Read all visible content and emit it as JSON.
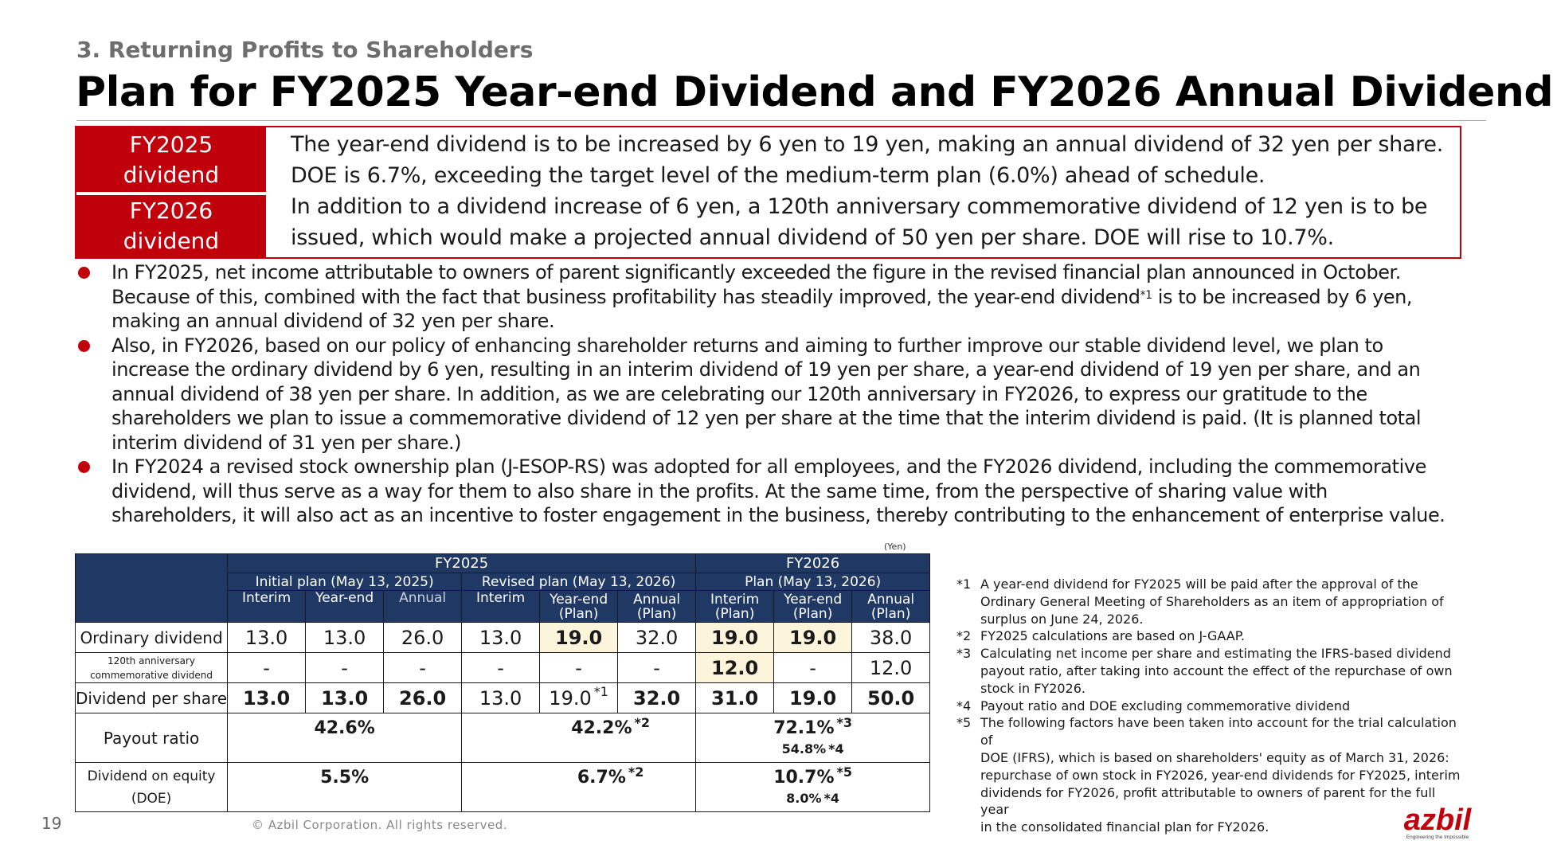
{
  "header": {
    "section": "3. Returning Profits to Shareholders",
    "title": "Plan for FY2025 Year-end Dividend and FY2026 Annual Dividend"
  },
  "summary": {
    "fy2025_label": [
      "FY2025",
      "dividend"
    ],
    "fy2025_lines": [
      "The year-end dividend is to be increased by 6 yen to 19 yen, making an annual dividend of 32 yen per share.",
      "DOE is 6.7%, exceeding the target level of the medium-term plan (6.0%) ahead of schedule."
    ],
    "fy2026_label": [
      "FY2026",
      "dividend"
    ],
    "fy2026_lines": [
      "In addition to a dividend increase of 6 yen, a 120th anniversary commemorative dividend of 12 yen is to be",
      "issued, which would make a projected annual dividend of 50 yen per share. DOE will rise to 10.7%."
    ]
  },
  "bullets": {
    "b1": {
      "l1": "In FY2025, net income attributable to owners of parent significantly exceeded the figure in the revised financial plan announced in October.",
      "l2a": "Because of this, combined with the fact that business profitability has steadily improved, the year-end dividend",
      "l2sup": "*1",
      "l2b": " is to be increased by 6 yen,",
      "l3": "making an annual dividend of 32 yen per share."
    },
    "b2": [
      "Also, in FY2026, based on our policy of enhancing shareholder returns and aiming to further improve our stable dividend level, we plan to",
      "increase the ordinary dividend by 6 yen, resulting in an interim dividend of 19 yen per share, a year-end dividend of 19 yen per share, and an",
      "annual dividend of 38 yen per share. In addition, as we are celebrating our 120th anniversary in FY2026, to express our gratitude to the",
      "shareholders we plan to issue a commemorative dividend of 12 yen per share at the time that the interim dividend is paid. (It is planned total",
      "interim dividend of 31 yen per share.)"
    ],
    "b3": [
      "In FY2024 a revised stock ownership plan (J-ESOP-RS) was adopted for all employees, and the FY2026 dividend, including the commemorative",
      "dividend, will thus serve as a way for them to also share in the profits. At the same time, from the perspective of sharing value with",
      "shareholders, it will also act as an incentive to foster engagement in the business, thereby contributing to the enhancement of enterprise value."
    ]
  },
  "table": {
    "unit": "(Yen)",
    "groups": [
      "FY2025",
      "FY2026"
    ],
    "subgroups": [
      "Initial plan (May 13, 2025)",
      "Revised plan (May 13, 2026)",
      "Plan (May 13, 2026)"
    ],
    "cols": {
      "c1": [
        "Interim"
      ],
      "c2": [
        "Year-end"
      ],
      "c3": [
        "Annual"
      ],
      "c4": [
        "Interim"
      ],
      "c5": [
        "Year-end",
        "(Plan)"
      ],
      "c6": [
        "Annual",
        "(Plan)"
      ],
      "c7": [
        "Interim",
        "(Plan)"
      ],
      "c8": [
        "Year-end",
        "(Plan)"
      ],
      "c9": [
        "Annual",
        "(Plan)"
      ]
    },
    "rows": {
      "ordinary": {
        "label": "Ordinary dividend",
        "values": [
          "13.0",
          "13.0",
          "26.0",
          "13.0",
          "19.0",
          "32.0",
          "19.0",
          "19.0",
          "38.0"
        ]
      },
      "commemorative": {
        "label": [
          "120th anniversary",
          "commemorative dividend"
        ],
        "values": [
          "-",
          "-",
          "-",
          "-",
          "-",
          "-",
          "12.0",
          "-",
          "12.0"
        ]
      },
      "per_share": {
        "label": "Dividend per share",
        "values": [
          "13.0",
          "13.0",
          "26.0",
          "13.0",
          "19.0",
          "32.0",
          "31.0",
          "19.0",
          "50.0"
        ],
        "note": "*1"
      },
      "payout": {
        "label": "Payout ratio",
        "initial": "42.6%",
        "revised": "42.2%",
        "revised_note": "*2",
        "plan": "72.1%",
        "plan_note": "*3",
        "plan_sub": "54.8%",
        "plan_sub_note": "*4"
      },
      "doe": {
        "label": [
          "Dividend on equity",
          "(DOE)"
        ],
        "initial": "5.5%",
        "revised": "6.7%",
        "revised_note": "*2",
        "plan": "10.7%",
        "plan_note": "*5",
        "plan_sub": "8.0%",
        "plan_sub_note": "*4"
      }
    }
  },
  "notes": [
    {
      "num": "*1",
      "lines": [
        "A year-end dividend for FY2025 will be paid after the approval of the",
        "Ordinary General Meeting of Shareholders as an item of appropriation of",
        "surplus on June 24, 2026."
      ]
    },
    {
      "num": "*2",
      "lines": [
        "FY2025 calculations are based on J-GAAP."
      ]
    },
    {
      "num": "*3",
      "lines": [
        "Calculating net income per share and estimating the IFRS-based dividend",
        "payout ratio, after taking into account the effect of the repurchase of own",
        "stock in FY2026."
      ]
    },
    {
      "num": "*4",
      "lines": [
        "Payout ratio and DOE excluding commemorative dividend"
      ]
    },
    {
      "num": "*5",
      "lines": [
        "The following factors have been taken into account for the trial calculation of",
        "DOE (IFRS), which is based on shareholders' equity as of March 31, 2026:",
        "repurchase of own stock in FY2026, year-end dividends for FY2025, interim",
        "dividends for FY2026, profit attributable to owners of parent for the full year",
        "in the consolidated financial plan for FY2026."
      ]
    }
  ],
  "footer": {
    "page": "19",
    "copyright": "© Azbil Corporation. All rights reserved.",
    "logo_text": "azbil",
    "logo_tagline": "Engineering the Impossible"
  },
  "colors": {
    "accent_red": "#c0000a",
    "table_header_navy": "#1f3864",
    "highlight": "#fdf4dc"
  }
}
